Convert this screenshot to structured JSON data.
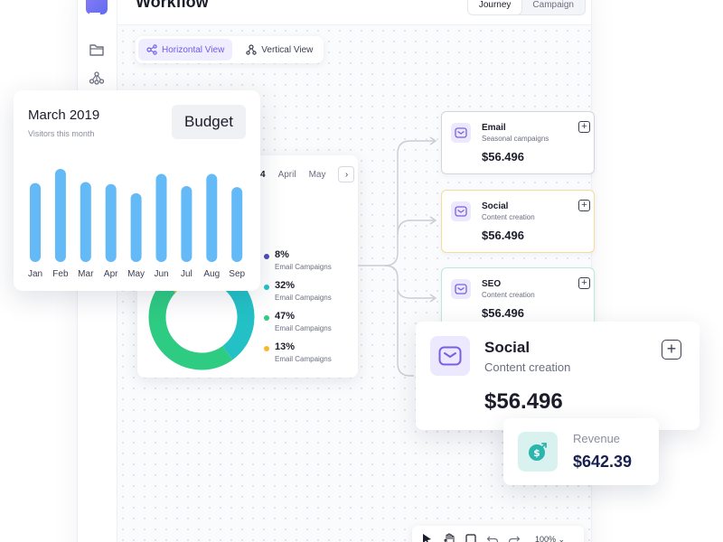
{
  "app": {
    "title": "Workflow",
    "segments": [
      {
        "label": "Journey",
        "active": true
      },
      {
        "label": "Campaign",
        "active": false
      }
    ]
  },
  "view_tabs": [
    {
      "label": "Horizontal View",
      "active": true
    },
    {
      "label": "Vertical View",
      "active": false
    }
  ],
  "budget_card": {
    "title": "March 2019",
    "subtitle": "Visitors this month",
    "button_label": "Budget"
  },
  "donut_card": {
    "months": [
      "4",
      "April",
      "May"
    ],
    "legend": [
      {
        "value": "8%",
        "label": "Email Campaigns",
        "color": "#4a4fb8"
      },
      {
        "value": "32%",
        "label": "Email Campaigns",
        "color": "#23c1c6"
      },
      {
        "value": "47%",
        "label": "Email Campaigns",
        "color": "#2ecb83"
      },
      {
        "value": "13%",
        "label": "Email Campaigns",
        "color": "#f7b82b"
      }
    ]
  },
  "nodes": [
    {
      "title": "Email",
      "subtitle": "Seasonal campaigns",
      "value": "$56.496"
    },
    {
      "title": "Social",
      "subtitle": "Content creation",
      "value": "$56.496"
    },
    {
      "title": "SEO",
      "subtitle": "Content creation",
      "value": "$56.496"
    }
  ],
  "social_card": {
    "title": "Social",
    "subtitle": "Content creation",
    "value": "$56.496"
  },
  "revenue_card": {
    "label": "Revenue",
    "value": "$642.39"
  },
  "toolbar": {
    "zoom": "100%"
  },
  "colors": {
    "accent": "#6d5ce8",
    "bar_blue": "#64b9f7",
    "donut_green": "#2ecb83",
    "donut_yellow": "#f7b82b"
  },
  "chart_data": [
    {
      "type": "bar",
      "title": "March 2019",
      "categories": [
        "Jan",
        "Feb",
        "Mar",
        "Apr",
        "May",
        "Jun",
        "Jul",
        "Aug",
        "Sep"
      ],
      "values": [
        78,
        92,
        79,
        77,
        68,
        87,
        75,
        87,
        74
      ],
      "ylim": [
        0,
        100
      ],
      "grid": false
    },
    {
      "type": "pie",
      "categories": [
        "Email Campaigns",
        "Email Campaigns",
        "Email Campaigns",
        "Email Campaigns"
      ],
      "values": [
        8,
        32,
        47,
        13
      ]
    }
  ]
}
